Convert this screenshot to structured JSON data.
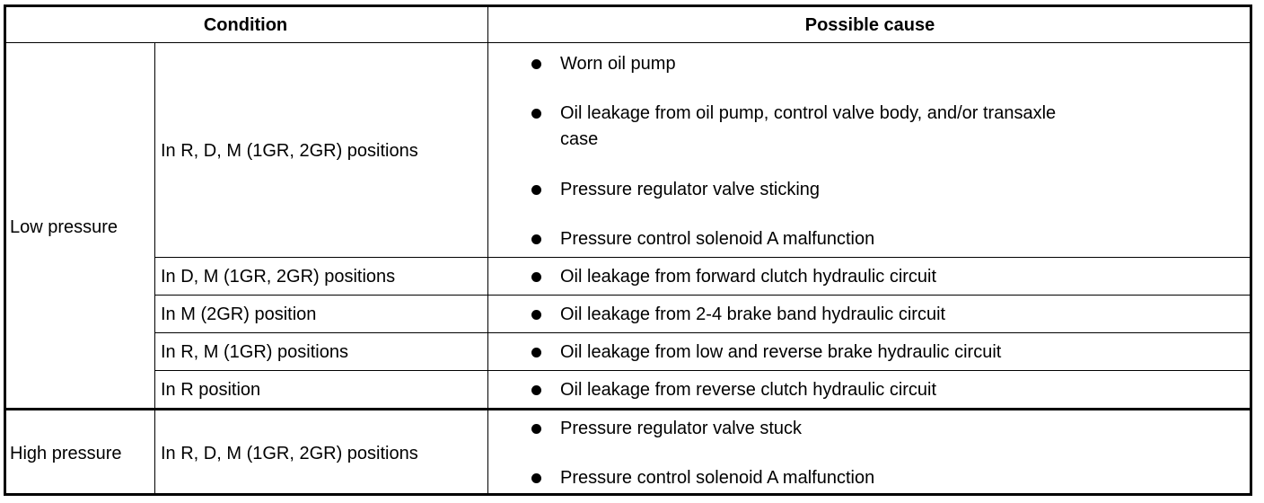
{
  "header": {
    "condition": "Condition",
    "cause": "Possible cause"
  },
  "low": {
    "label": "Low pressure",
    "rows": [
      {
        "position": "In R, D, M (1GR, 2GR) positions",
        "causes": [
          "Worn oil pump",
          "Oil leakage from oil pump, control valve body, and/or transaxle",
          "case",
          "Pressure regulator valve sticking",
          "Pressure control solenoid A malfunction"
        ]
      },
      {
        "position": "In D, M (1GR, 2GR) positions",
        "causes": [
          "Oil leakage from forward clutch hydraulic circuit"
        ]
      },
      {
        "position": "In M (2GR) position",
        "causes": [
          "Oil leakage from 2-4 brake band hydraulic circuit"
        ]
      },
      {
        "position": "In R, M (1GR) positions",
        "causes": [
          "Oil leakage from low and reverse brake hydraulic circuit"
        ]
      },
      {
        "position": "In R position",
        "causes": [
          "Oil leakage from reverse clutch hydraulic circuit"
        ]
      }
    ]
  },
  "high": {
    "label": "High pressure",
    "position": "In R, D, M (1GR, 2GR) positions",
    "causes": [
      "Pressure regulator valve stuck",
      "Pressure control solenoid A malfunction"
    ]
  },
  "icons": {
    "bullet": "filled-circle-bullet"
  }
}
